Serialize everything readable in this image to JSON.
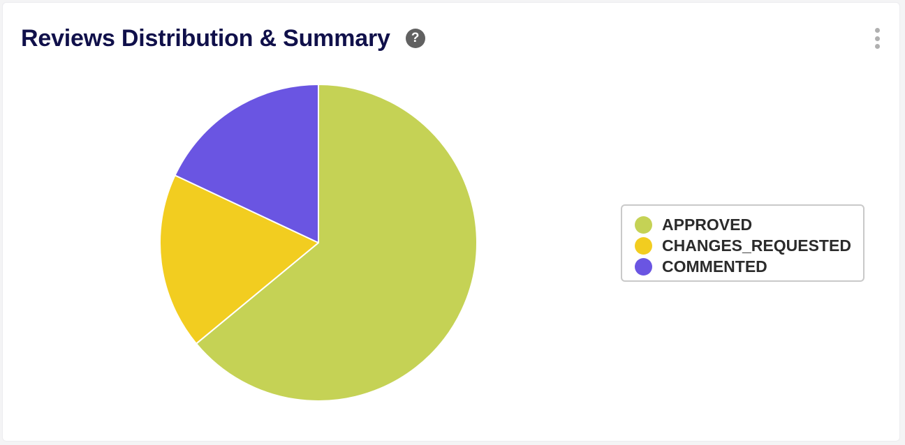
{
  "header": {
    "title": "Reviews Distribution & Summary",
    "help_icon": "question-circle-icon",
    "menu_icon": "kebab-menu-icon"
  },
  "chart_data": {
    "type": "pie",
    "start_angle_deg": 0,
    "direction": "clockwise",
    "slices": [
      {
        "label": "APPROVED",
        "value": 64,
        "color": "#c5d255"
      },
      {
        "label": "CHANGES_REQUESTED",
        "value": 18,
        "color": "#f2cd20"
      },
      {
        "label": "COMMENTED",
        "value": 18,
        "color": "#6a55e2"
      }
    ],
    "legend_position": "right"
  }
}
